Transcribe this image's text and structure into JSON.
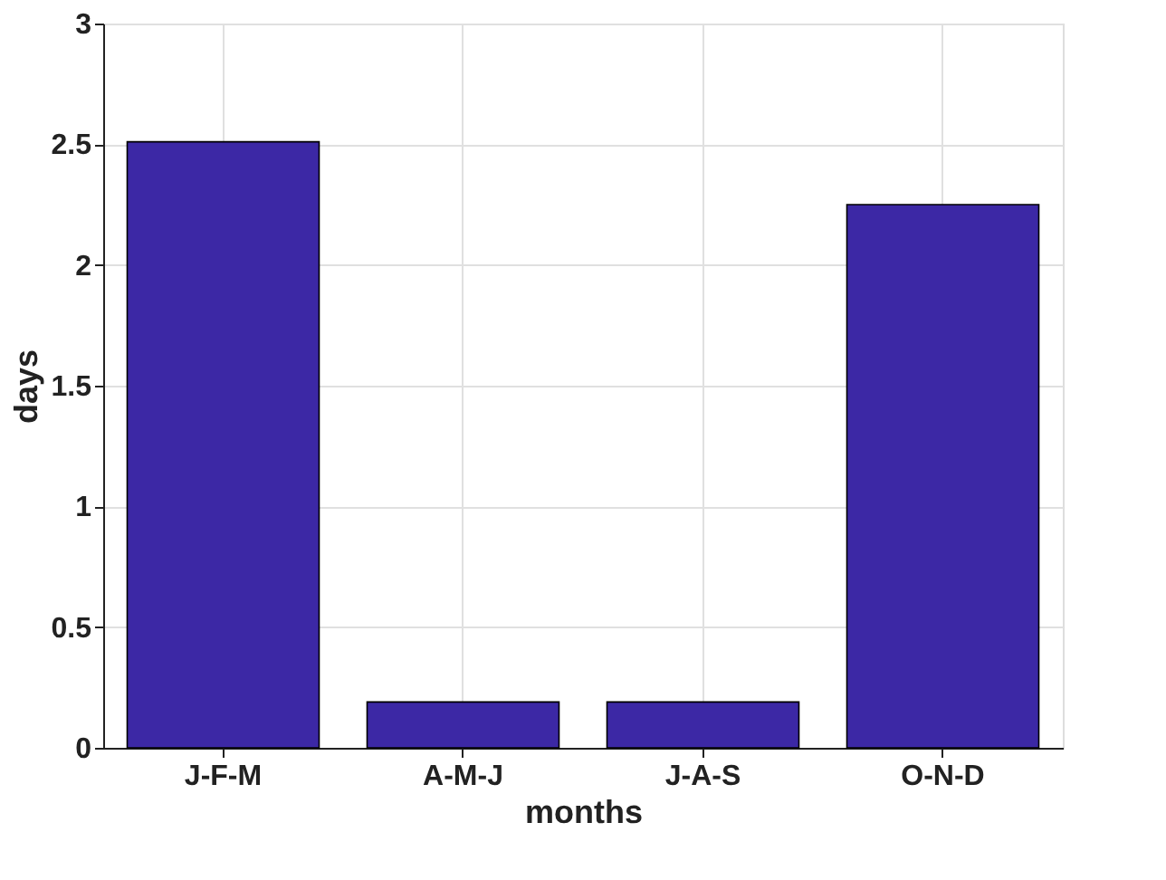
{
  "chart_data": {
    "type": "bar",
    "xlabel": "months",
    "ylabel": "days",
    "categories": [
      "J-F-M",
      "A-M-J",
      "J-A-S",
      "O-N-D"
    ],
    "values": [
      2.51,
      0.19,
      0.19,
      2.25
    ],
    "color": "#3c28a5",
    "ylim": [
      0,
      3
    ],
    "yticks": [
      0,
      0.5,
      1,
      1.5,
      2,
      2.5,
      3
    ],
    "grid": true
  }
}
